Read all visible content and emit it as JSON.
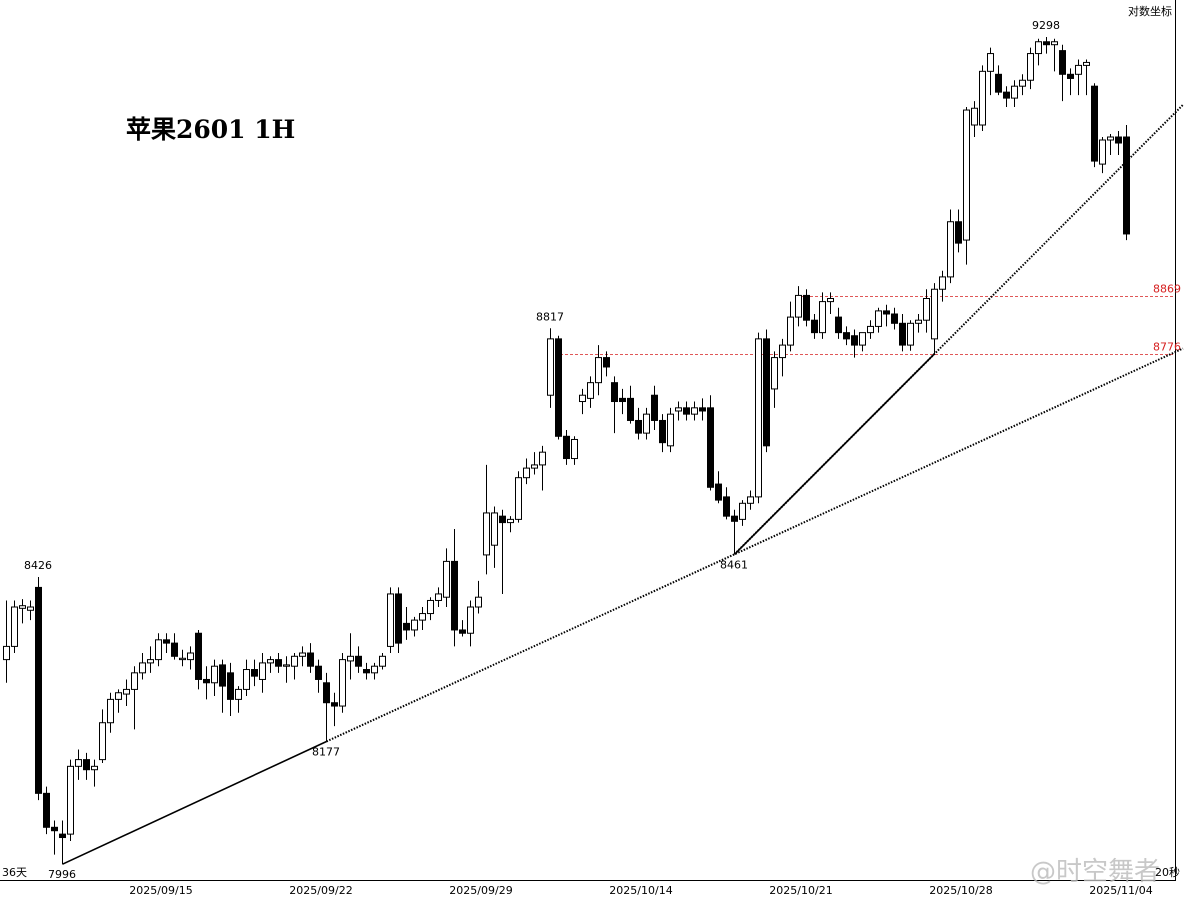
{
  "chart_data": {
    "type": "candlestick",
    "title": "苹果2601 1H",
    "scale_label": "对数坐标",
    "period_label": "36天",
    "timer_label": "20秒",
    "watermark": "@时空舞者",
    "log_scale": true,
    "ylim": [
      7973,
      9361
    ],
    "up_color": "#ffffff",
    "down_color": "#000000",
    "level_color": "#d62020",
    "levels": [
      {
        "value": 8869,
        "label": "8869"
      },
      {
        "value": 8776,
        "label": "8776"
      }
    ],
    "price_labels": [
      8426,
      7996,
      8177,
      8817,
      8461,
      9298
    ],
    "categories": [
      null,
      null,
      null,
      null,
      null,
      null,
      null,
      null,
      null,
      null,
      null,
      null,
      null,
      null,
      null,
      null,
      null,
      null,
      null,
      "2025/09/15",
      null,
      null,
      null,
      null,
      null,
      null,
      null,
      null,
      null,
      null,
      null,
      null,
      null,
      null,
      null,
      null,
      null,
      null,
      null,
      "2025/09/22",
      null,
      null,
      null,
      null,
      null,
      null,
      null,
      null,
      null,
      null,
      null,
      null,
      null,
      null,
      null,
      null,
      null,
      null,
      null,
      "2025/09/29",
      null,
      null,
      null,
      null,
      null,
      null,
      null,
      null,
      null,
      null,
      null,
      null,
      null,
      null,
      null,
      null,
      null,
      null,
      null,
      "2025/10/14",
      null,
      null,
      null,
      null,
      null,
      null,
      null,
      null,
      null,
      null,
      null,
      null,
      null,
      null,
      null,
      null,
      null,
      null,
      null,
      "2025/10/21",
      null,
      null,
      null,
      null,
      null,
      null,
      null,
      null,
      null,
      null,
      null,
      null,
      null,
      null,
      null,
      null,
      null,
      null,
      null,
      "2025/10/28",
      null,
      null,
      null,
      null,
      null,
      null,
      null,
      null,
      null,
      null,
      null,
      null,
      null,
      null,
      null,
      null,
      null,
      null,
      null,
      "2025/11/04",
      null
    ],
    "candles": [
      [
        8300,
        8390,
        8265,
        8320
      ],
      [
        8320,
        8390,
        8310,
        8380
      ],
      [
        8378,
        8392,
        8355,
        8382
      ],
      [
        8375,
        8390,
        8360,
        8380
      ],
      [
        8410,
        8426,
        8090,
        8100
      ],
      [
        8100,
        8110,
        8040,
        8050
      ],
      [
        8050,
        8060,
        8010,
        8045
      ],
      [
        8040,
        8060,
        7996,
        8035
      ],
      [
        8040,
        8150,
        8030,
        8140
      ],
      [
        8140,
        8165,
        8120,
        8150
      ],
      [
        8150,
        8160,
        8120,
        8135
      ],
      [
        8135,
        8150,
        8110,
        8140
      ],
      [
        8150,
        8225,
        8145,
        8205
      ],
      [
        8205,
        8250,
        8190,
        8240
      ],
      [
        8240,
        8255,
        8220,
        8250
      ],
      [
        8248,
        8270,
        8230,
        8255
      ],
      [
        8255,
        8290,
        8195,
        8280
      ],
      [
        8280,
        8310,
        8270,
        8295
      ],
      [
        8295,
        8320,
        8280,
        8300
      ],
      [
        8300,
        8340,
        8290,
        8330
      ],
      [
        8330,
        8340,
        8310,
        8325
      ],
      [
        8325,
        8340,
        8300,
        8305
      ],
      [
        8300,
        8315,
        8290,
        8302
      ],
      [
        8300,
        8320,
        8285,
        8310
      ],
      [
        8340,
        8345,
        8255,
        8270
      ],
      [
        8270,
        8290,
        8240,
        8265
      ],
      [
        8265,
        8300,
        8245,
        8290
      ],
      [
        8292,
        8300,
        8220,
        8260
      ],
      [
        8280,
        8295,
        8215,
        8240
      ],
      [
        8240,
        8260,
        8220,
        8255
      ],
      [
        8255,
        8300,
        8245,
        8285
      ],
      [
        8285,
        8300,
        8260,
        8275
      ],
      [
        8270,
        8310,
        8250,
        8295
      ],
      [
        8295,
        8305,
        8280,
        8300
      ],
      [
        8300,
        8310,
        8280,
        8290
      ],
      [
        8290,
        8305,
        8265,
        8292
      ],
      [
        8290,
        8310,
        8270,
        8305
      ],
      [
        8305,
        8320,
        8290,
        8310
      ],
      [
        8310,
        8325,
        8280,
        8290
      ],
      [
        8290,
        8300,
        8250,
        8270
      ],
      [
        8265,
        8280,
        8177,
        8235
      ],
      [
        8235,
        8250,
        8200,
        8230
      ],
      [
        8230,
        8310,
        8220,
        8300
      ],
      [
        8298,
        8340,
        8270,
        8305
      ],
      [
        8305,
        8320,
        8280,
        8290
      ],
      [
        8285,
        8295,
        8270,
        8280
      ],
      [
        8280,
        8295,
        8270,
        8290
      ],
      [
        8290,
        8310,
        8285,
        8305
      ],
      [
        8320,
        8410,
        8310,
        8400
      ],
      [
        8400,
        8410,
        8310,
        8325
      ],
      [
        8355,
        8380,
        8330,
        8345
      ],
      [
        8345,
        8365,
        8335,
        8360
      ],
      [
        8360,
        8380,
        8345,
        8370
      ],
      [
        8370,
        8395,
        8360,
        8390
      ],
      [
        8390,
        8410,
        8380,
        8400
      ],
      [
        8395,
        8470,
        8380,
        8450
      ],
      [
        8450,
        8500,
        8320,
        8345
      ],
      [
        8345,
        8360,
        8335,
        8340
      ],
      [
        8340,
        8390,
        8320,
        8380
      ],
      [
        8380,
        8420,
        8370,
        8395
      ],
      [
        8460,
        8600,
        8430,
        8525
      ],
      [
        8475,
        8535,
        8440,
        8525
      ],
      [
        8520,
        8530,
        8400,
        8510
      ],
      [
        8510,
        8520,
        8495,
        8515
      ],
      [
        8515,
        8590,
        8510,
        8580
      ],
      [
        8580,
        8610,
        8570,
        8595
      ],
      [
        8595,
        8620,
        8585,
        8600
      ],
      [
        8600,
        8630,
        8560,
        8620
      ],
      [
        8710,
        8817,
        8690,
        8800
      ],
      [
        8800,
        8805,
        8640,
        8645
      ],
      [
        8645,
        8655,
        8600,
        8610
      ],
      [
        8610,
        8645,
        8600,
        8640
      ],
      [
        8700,
        8720,
        8680,
        8710
      ],
      [
        8705,
        8740,
        8690,
        8730
      ],
      [
        8730,
        8790,
        8710,
        8770
      ],
      [
        8770,
        8780,
        8740,
        8755
      ],
      [
        8730,
        8740,
        8650,
        8700
      ],
      [
        8705,
        8720,
        8680,
        8700
      ],
      [
        8705,
        8725,
        8665,
        8670
      ],
      [
        8670,
        8690,
        8640,
        8650
      ],
      [
        8650,
        8690,
        8640,
        8680
      ],
      [
        8710,
        8725,
        8655,
        8670
      ],
      [
        8670,
        8680,
        8620,
        8635
      ],
      [
        8630,
        8690,
        8620,
        8680
      ],
      [
        8685,
        8700,
        8670,
        8690
      ],
      [
        8690,
        8700,
        8670,
        8680
      ],
      [
        8680,
        8700,
        8670,
        8690
      ],
      [
        8690,
        8705,
        8670,
        8685
      ],
      [
        8690,
        8710,
        8560,
        8565
      ],
      [
        8570,
        8590,
        8540,
        8545
      ],
      [
        8550,
        8565,
        8515,
        8520
      ],
      [
        8520,
        8530,
        8461,
        8512
      ],
      [
        8515,
        8545,
        8505,
        8540
      ],
      [
        8540,
        8560,
        8530,
        8550
      ],
      [
        8550,
        8810,
        8540,
        8800
      ],
      [
        8800,
        8815,
        8620,
        8630
      ],
      [
        8720,
        8780,
        8690,
        8770
      ],
      [
        8770,
        8800,
        8740,
        8790
      ],
      [
        8790,
        8860,
        8780,
        8835
      ],
      [
        8835,
        8885,
        8820,
        8870
      ],
      [
        8870,
        8880,
        8820,
        8830
      ],
      [
        8830,
        8840,
        8800,
        8810
      ],
      [
        8810,
        8875,
        8800,
        8860
      ],
      [
        8860,
        8875,
        8840,
        8865
      ],
      [
        8835,
        8850,
        8800,
        8810
      ],
      [
        8810,
        8820,
        8790,
        8800
      ],
      [
        8805,
        8815,
        8770,
        8790
      ],
      [
        8790,
        8810,
        8780,
        8810
      ],
      [
        8810,
        8830,
        8800,
        8820
      ],
      [
        8820,
        8850,
        8810,
        8845
      ],
      [
        8845,
        8855,
        8820,
        8840
      ],
      [
        8840,
        8850,
        8815,
        8825
      ],
      [
        8825,
        8840,
        8780,
        8790
      ],
      [
        8790,
        8830,
        8781,
        8825
      ],
      [
        8825,
        8840,
        8810,
        8830
      ],
      [
        8830,
        8880,
        8810,
        8865
      ],
      [
        8800,
        8890,
        8776,
        8880
      ],
      [
        8880,
        8910,
        8860,
        8900
      ],
      [
        8900,
        9010,
        8890,
        8990
      ],
      [
        8990,
        9010,
        8940,
        8955
      ],
      [
        8960,
        9180,
        8920,
        9175
      ],
      [
        9150,
        9190,
        9130,
        9178
      ],
      [
        9150,
        9250,
        9140,
        9240
      ],
      [
        9240,
        9280,
        9200,
        9270
      ],
      [
        9235,
        9250,
        9200,
        9205
      ],
      [
        9205,
        9215,
        9180,
        9195
      ],
      [
        9195,
        9225,
        9180,
        9215
      ],
      [
        9215,
        9235,
        9200,
        9225
      ],
      [
        9225,
        9280,
        9210,
        9270
      ],
      [
        9270,
        9295,
        9250,
        9290
      ],
      [
        9290,
        9298,
        9270,
        9285
      ],
      [
        9285,
        9295,
        9240,
        9290
      ],
      [
        9275,
        9285,
        9190,
        9235
      ],
      [
        9235,
        9245,
        9200,
        9228
      ],
      [
        9235,
        9260,
        9200,
        9250
      ],
      [
        9250,
        9260,
        9200,
        9255
      ],
      [
        9215,
        9220,
        9080,
        9090
      ],
      [
        9085,
        9130,
        9070,
        9125
      ],
      [
        9125,
        9135,
        9100,
        9130
      ],
      [
        9130,
        9140,
        9100,
        9120
      ],
      [
        9130,
        9150,
        8960,
        8970
      ]
    ]
  }
}
